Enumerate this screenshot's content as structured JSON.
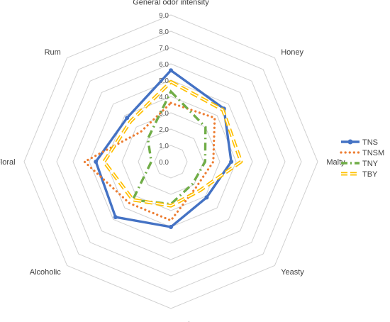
{
  "chart_data": {
    "type": "radar",
    "axes": [
      "General odor intensity",
      "Honey",
      "Malty",
      "Yeasty",
      "Fermented",
      "Alcoholic",
      "Floral",
      "Rum"
    ],
    "r_range": [
      0,
      9
    ],
    "r_ticks": [
      "0.0",
      "1.0",
      "2.0",
      "3.0",
      "4.0",
      "5.0",
      "6.0",
      "7.0",
      "8.0",
      "9.0"
    ],
    "grid": true,
    "legend_position": "right",
    "series": [
      {
        "name": "TNS",
        "color": "#4472C4",
        "style": "solid-marker",
        "values": [
          5.6,
          4.6,
          3.7,
          3.1,
          4.0,
          4.8,
          4.6,
          3.8
        ]
      },
      {
        "name": "TNSM",
        "color": "#ED7D31",
        "style": "dotted",
        "values": [
          3.6,
          3.8,
          2.6,
          2.2,
          3.6,
          3.6,
          5.3,
          2.6
        ]
      },
      {
        "name": "TNY",
        "color": "#70AD47",
        "style": "dash-dot",
        "values": [
          4.3,
          3.0,
          2.1,
          1.9,
          2.6,
          3.3,
          1.2,
          2.0
        ]
      },
      {
        "name": "TBY",
        "color": "#FFC000",
        "style": "double-dashed",
        "values": [
          4.9,
          4.5,
          4.3,
          2.5,
          2.7,
          3.3,
          4.1,
          3.5
        ]
      }
    ]
  }
}
